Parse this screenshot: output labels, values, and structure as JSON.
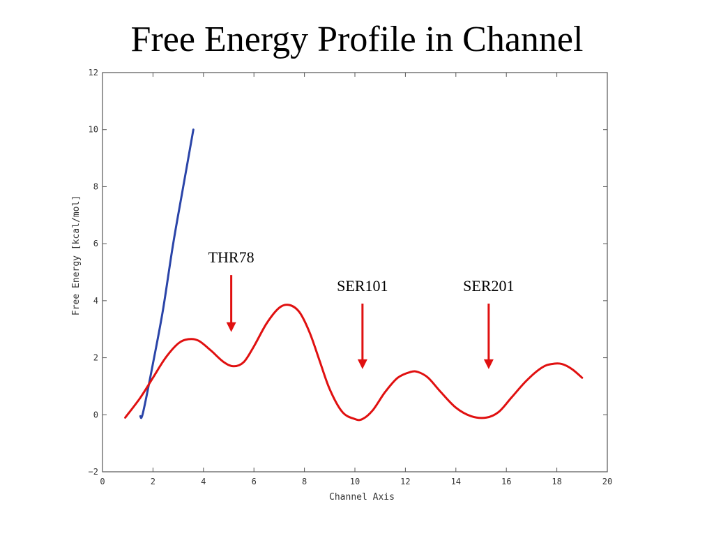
{
  "slide": {
    "title": "Free Energy Profile in Channel"
  },
  "chart_data": {
    "type": "line",
    "title": "Free Energy Profile in Channel",
    "xlabel": "Channel Axis",
    "ylabel": "Free Energy [kcal/mol]",
    "xlim": [
      0,
      20
    ],
    "ylim": [
      -2,
      12
    ],
    "x_ticks": [
      0,
      2,
      4,
      6,
      8,
      10,
      12,
      14,
      16,
      18,
      20
    ],
    "y_ticks": [
      -2,
      0,
      2,
      4,
      6,
      8,
      10,
      12
    ],
    "grid": false,
    "legend": "none",
    "series": [
      {
        "color": "#2a44a8",
        "x": [
          1.5,
          1.6,
          2.0,
          2.4,
          2.8,
          3.2,
          3.6
        ],
        "y": [
          -0.05,
          0.05,
          1.8,
          3.7,
          6.0,
          8.0,
          10.0
        ]
      },
      {
        "color": "#e01010",
        "x": [
          0.9,
          1.5,
          2.0,
          2.5,
          3.0,
          3.4,
          3.8,
          4.3,
          4.8,
          5.2,
          5.6,
          6.0,
          6.5,
          7.0,
          7.4,
          7.8,
          8.2,
          8.6,
          9.0,
          9.5,
          10.0,
          10.3,
          10.7,
          11.2,
          11.7,
          12.2,
          12.5,
          12.9,
          13.4,
          14.0,
          14.6,
          15.2,
          15.7,
          16.2,
          16.8,
          17.4,
          17.8,
          18.2,
          18.6,
          19.0
        ],
        "y": [
          -0.1,
          0.6,
          1.3,
          2.0,
          2.5,
          2.65,
          2.6,
          2.25,
          1.85,
          1.7,
          1.85,
          2.4,
          3.2,
          3.75,
          3.85,
          3.6,
          2.9,
          1.9,
          0.9,
          0.1,
          -0.15,
          -0.15,
          0.15,
          0.8,
          1.3,
          1.5,
          1.5,
          1.3,
          0.8,
          0.25,
          -0.05,
          -0.1,
          0.1,
          0.6,
          1.2,
          1.65,
          1.78,
          1.78,
          1.6,
          1.3
        ]
      }
    ],
    "annotations": [
      {
        "label": "THR78",
        "arrow_x": 5.1,
        "arrow_y_top": 4.9,
        "arrow_y_bottom": 2.9,
        "color": "#e01010"
      },
      {
        "label": "SER101",
        "arrow_x": 10.3,
        "arrow_y_top": 3.9,
        "arrow_y_bottom": 1.6,
        "color": "#e01010"
      },
      {
        "label": "SER201",
        "arrow_x": 15.3,
        "arrow_y_top": 3.9,
        "arrow_y_bottom": 1.6,
        "color": "#e01010"
      }
    ]
  }
}
